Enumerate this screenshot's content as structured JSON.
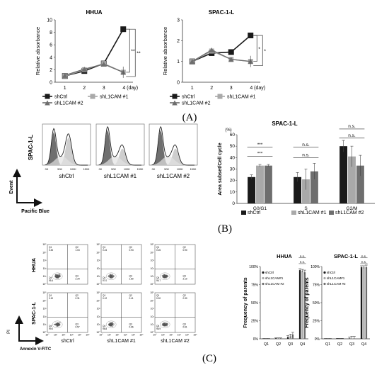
{
  "panels": {
    "a": "(A)",
    "b": "(B)",
    "c": "(C)"
  },
  "colors": {
    "ctrl": "#1a1a1a",
    "sh1": "#a9a9a9",
    "sh2": "#6e6e6e"
  },
  "chart_data": [
    {
      "id": "hhua_abs",
      "type": "line",
      "title": "HHUA",
      "ylabel": "Relative absorbance",
      "xlabel": "",
      "x_unit": "(day)",
      "x": [
        1,
        2,
        3,
        4
      ],
      "ylim": [
        0,
        10
      ],
      "yticks": [
        0,
        2,
        4,
        6,
        8,
        10
      ],
      "series": [
        {
          "name": "shCtrl",
          "values": [
            1.0,
            1.8,
            3.0,
            8.5
          ]
        },
        {
          "name": "shL1CAM #1",
          "values": [
            1.0,
            2.0,
            3.0,
            1.6
          ]
        },
        {
          "name": "shL1CAM #2",
          "values": [
            1.1,
            2.1,
            2.9,
            1.6
          ]
        }
      ],
      "annotations": [
        "**",
        "**"
      ]
    },
    {
      "id": "spac_abs",
      "type": "line",
      "title": "SPAC-1-L",
      "ylabel": "Relative absorbance",
      "xlabel": "",
      "x_unit": "(day)",
      "x": [
        1,
        2,
        3,
        4
      ],
      "ylim": [
        0,
        3
      ],
      "yticks": [
        0,
        1,
        2,
        3
      ],
      "series": [
        {
          "name": "shCtrl",
          "values": [
            1.0,
            1.4,
            1.45,
            2.25
          ]
        },
        {
          "name": "shL1CAM #1",
          "values": [
            1.0,
            1.5,
            1.1,
            1.0
          ]
        },
        {
          "name": "shL1CAM #2",
          "values": [
            1.0,
            1.55,
            1.1,
            1.0
          ]
        }
      ],
      "annotations": [
        "*",
        "*"
      ]
    },
    {
      "id": "spac_cellcycle",
      "type": "bar",
      "title": "SPAC-1-L",
      "ylabel": "Area subset/Cell cycle",
      "y_unit": "(%)",
      "categories": [
        "G0/G1",
        "S",
        "G2/M"
      ],
      "ylim": [
        0,
        60
      ],
      "yticks": [
        0,
        10,
        20,
        30,
        40,
        50,
        60
      ],
      "series": [
        {
          "name": "shCtrl",
          "values": [
            23,
            23,
            50
          ]
        },
        {
          "name": "shL1CAM #1",
          "values": [
            33,
            21,
            41
          ]
        },
        {
          "name": "shL1CAM #2",
          "values": [
            33,
            28,
            33
          ]
        }
      ],
      "annotations": [
        "***",
        "***",
        "n.s.",
        "n.s.",
        "n.s.",
        "n.s."
      ]
    },
    {
      "id": "hhua_freq",
      "type": "bar",
      "title": "HHUA",
      "ylabel": "Frequency of parents",
      "categories": [
        "Q1",
        "Q2",
        "Q3",
        "Q4"
      ],
      "ylim": [
        0,
        100
      ],
      "yticks": [
        "0%",
        "25%",
        "50%",
        "75%",
        "100%"
      ],
      "series": [
        {
          "name": "shCtrl",
          "values": [
            0.2,
            0.8,
            2.5,
            95
          ]
        },
        {
          "name": "shL1CAM#1",
          "values": [
            0.2,
            0.8,
            3.5,
            94
          ]
        },
        {
          "name": "shL1CAM #2",
          "values": [
            0.2,
            0.8,
            6.0,
            92
          ]
        }
      ],
      "annotations": [
        "n.s.",
        "n.s."
      ]
    },
    {
      "id": "spac_freq",
      "type": "bar",
      "title": "SPAC-1-L",
      "ylabel": "Frequency of parents",
      "categories": [
        "Q1",
        "Q2",
        "Q3",
        "Q4"
      ],
      "ylim": [
        0,
        100
      ],
      "yticks": [
        "0%",
        "25%",
        "50%",
        "75%",
        "100%"
      ],
      "series": [
        {
          "name": "shCtrl",
          "values": [
            0.2,
            0.2,
            0.5,
            99
          ]
        },
        {
          "name": "shL1CAM#1",
          "values": [
            0.2,
            0.2,
            0.5,
            99
          ]
        },
        {
          "name": "shL1CAM #2",
          "values": [
            0.2,
            0.2,
            0.5,
            99
          ]
        }
      ],
      "annotations": [
        "n.s.",
        "n.s."
      ]
    }
  ],
  "histograms": {
    "row_label": "SPAC-1-L",
    "y_axis_label": "Event",
    "x_axis_label": "Pacific Blue",
    "ticks": [
      "0K",
      "50K",
      "100K",
      "150K"
    ],
    "captions": [
      "shCtrl",
      "shL1CAM #1",
      "shL1CAM #2"
    ]
  },
  "flow": {
    "row_labels": [
      "HHUA",
      "SPAC-1-L"
    ],
    "y_axis_label": "PI",
    "x_axis_label": "Annexin V-FITC",
    "captions": [
      "shCtrl",
      "shL1CAM #1",
      "shL1CAM #2"
    ],
    "ticks": [
      "10°",
      "10¹",
      "10²",
      "10³",
      "10⁴",
      "10⁵"
    ],
    "quadrants": [
      [
        {
          "Q1": "0.30",
          "Q2": "1.03",
          "Q3": "2.34",
          "Q4": "95.4"
        },
        {
          "Q1": "0.24",
          "Q2": "0.93",
          "Q3": "1.80",
          "Q4": "97.0"
        },
        {
          "Q1": "0.26",
          "Q2": "0.90",
          "Q3": "2.10",
          "Q4": "96.7"
        }
      ],
      [
        {
          "Q1": "0.10",
          "Q2": "0.31",
          "Q3": "0.57",
          "Q4": "99.0"
        },
        {
          "Q1": "0.12",
          "Q2": "0.41",
          "Q3": "0.66",
          "Q4": "98.8"
        },
        {
          "Q1": "0.20",
          "Q2": "0.30",
          "Q3": "0.61",
          "Q4": "98.9"
        }
      ]
    ]
  }
}
